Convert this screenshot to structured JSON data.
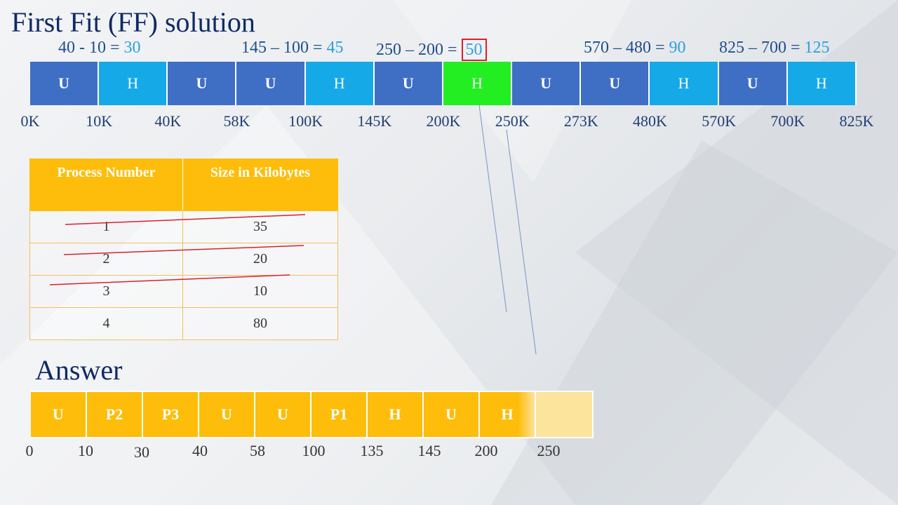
{
  "title": "First Fit (FF) solution",
  "calculations": [
    {
      "expr": "40 - 10 = ",
      "result": "30",
      "boxed": false
    },
    {
      "expr": "145 – 100 = ",
      "result": "45",
      "boxed": false
    },
    {
      "expr": "250 – 200 = ",
      "result": "50",
      "boxed": true
    },
    {
      "expr": "570 – 480 = ",
      "result": "90",
      "boxed": false
    },
    {
      "expr": "825 – 700 = ",
      "result": "125",
      "boxed": false
    }
  ],
  "memory_segments": [
    {
      "label": "U",
      "type": "U",
      "start": 0,
      "end": 10
    },
    {
      "label": "H",
      "type": "H",
      "start": 10,
      "end": 40
    },
    {
      "label": "U",
      "type": "U",
      "start": 40,
      "end": 58
    },
    {
      "label": "U",
      "type": "U",
      "start": 58,
      "end": 100
    },
    {
      "label": "H",
      "type": "H",
      "start": 100,
      "end": 145
    },
    {
      "label": "U",
      "type": "U",
      "start": 145,
      "end": 200
    },
    {
      "label": "H",
      "type": "G",
      "start": 200,
      "end": 250
    },
    {
      "label": "U",
      "type": "U",
      "start": 250,
      "end": 273
    },
    {
      "label": "U",
      "type": "U",
      "start": 273,
      "end": 480
    },
    {
      "label": "H",
      "type": "H",
      "start": 480,
      "end": 570
    },
    {
      "label": "U",
      "type": "U",
      "start": 570,
      "end": 700
    },
    {
      "label": "H",
      "type": "H",
      "start": 700,
      "end": 825
    }
  ],
  "memory_ticks": [
    "0K",
    "10K",
    "40K",
    "58K",
    "100K",
    "145K",
    "200K",
    "250K",
    "273K",
    "480K",
    "570K",
    "700K",
    "825K"
  ],
  "table": {
    "headers": [
      "Process Number",
      "Size in Kilobytes"
    ],
    "rows": [
      {
        "process": "1",
        "size": "35",
        "struck": true
      },
      {
        "process": "2",
        "size": "20",
        "struck": true
      },
      {
        "process": "3",
        "size": "10",
        "struck": true
      },
      {
        "process": "4",
        "size": "80",
        "struck": false
      }
    ]
  },
  "answer_label": "Answer",
  "answer_segments": [
    "U",
    "P2",
    "P3",
    "U",
    "U",
    "P1",
    "H",
    "U",
    "H",
    ""
  ],
  "answer_ticks": [
    "0",
    "10",
    "30",
    "40",
    "58",
    "100",
    "135",
    "145",
    "200",
    "250"
  ],
  "colors": {
    "used": "#3f6fc4",
    "hole": "#15a9e8",
    "selected_hole": "#22ee22",
    "answer": "#fdbd0a",
    "strike": "#d9232e",
    "highlight_box": "#e01e2b"
  }
}
